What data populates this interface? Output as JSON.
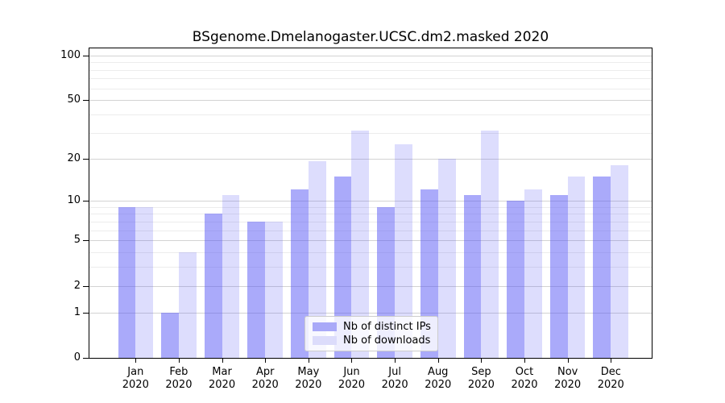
{
  "chart_data": {
    "type": "bar",
    "title": "BSgenome.Dmelanogaster.UCSC.dm2.masked 2020",
    "categories": [
      "Jan",
      "Feb",
      "Mar",
      "Apr",
      "May",
      "Jun",
      "Jul",
      "Aug",
      "Sep",
      "Oct",
      "Nov",
      "Dec"
    ],
    "year_label": "2020",
    "series": [
      {
        "name": "Nb of distinct IPs",
        "values": [
          9,
          1,
          8,
          7,
          12,
          15,
          9,
          12,
          11,
          10,
          11,
          15
        ],
        "fill": "rgba(85,85,245,0.5)",
        "legend_swatch": "#a9a9f8"
      },
      {
        "name": "Nb of downloads",
        "values": [
          9,
          4,
          11,
          7,
          19,
          31,
          25,
          20,
          31,
          12,
          15,
          18
        ],
        "fill": "rgba(85,85,245,0.2)",
        "legend_swatch": "#dcdcfb"
      }
    ],
    "xlabel": "",
    "ylabel": "",
    "yscale": "log1p",
    "ylim": [
      0,
      113
    ],
    "yticks": [
      100,
      50,
      20,
      10,
      5,
      2,
      1,
      0
    ],
    "yticks_minor": [
      3,
      4,
      6,
      7,
      8,
      9,
      30,
      40,
      60,
      70,
      80,
      90
    ],
    "grid": true,
    "legend_position": "lower-center"
  },
  "colors": {
    "bar_base": "#5555f5",
    "grid_major": "#d3d3d3",
    "grid_minor": "#ececec",
    "axis": "#000000",
    "legend_border": "#cccccc",
    "background": "#ffffff"
  }
}
